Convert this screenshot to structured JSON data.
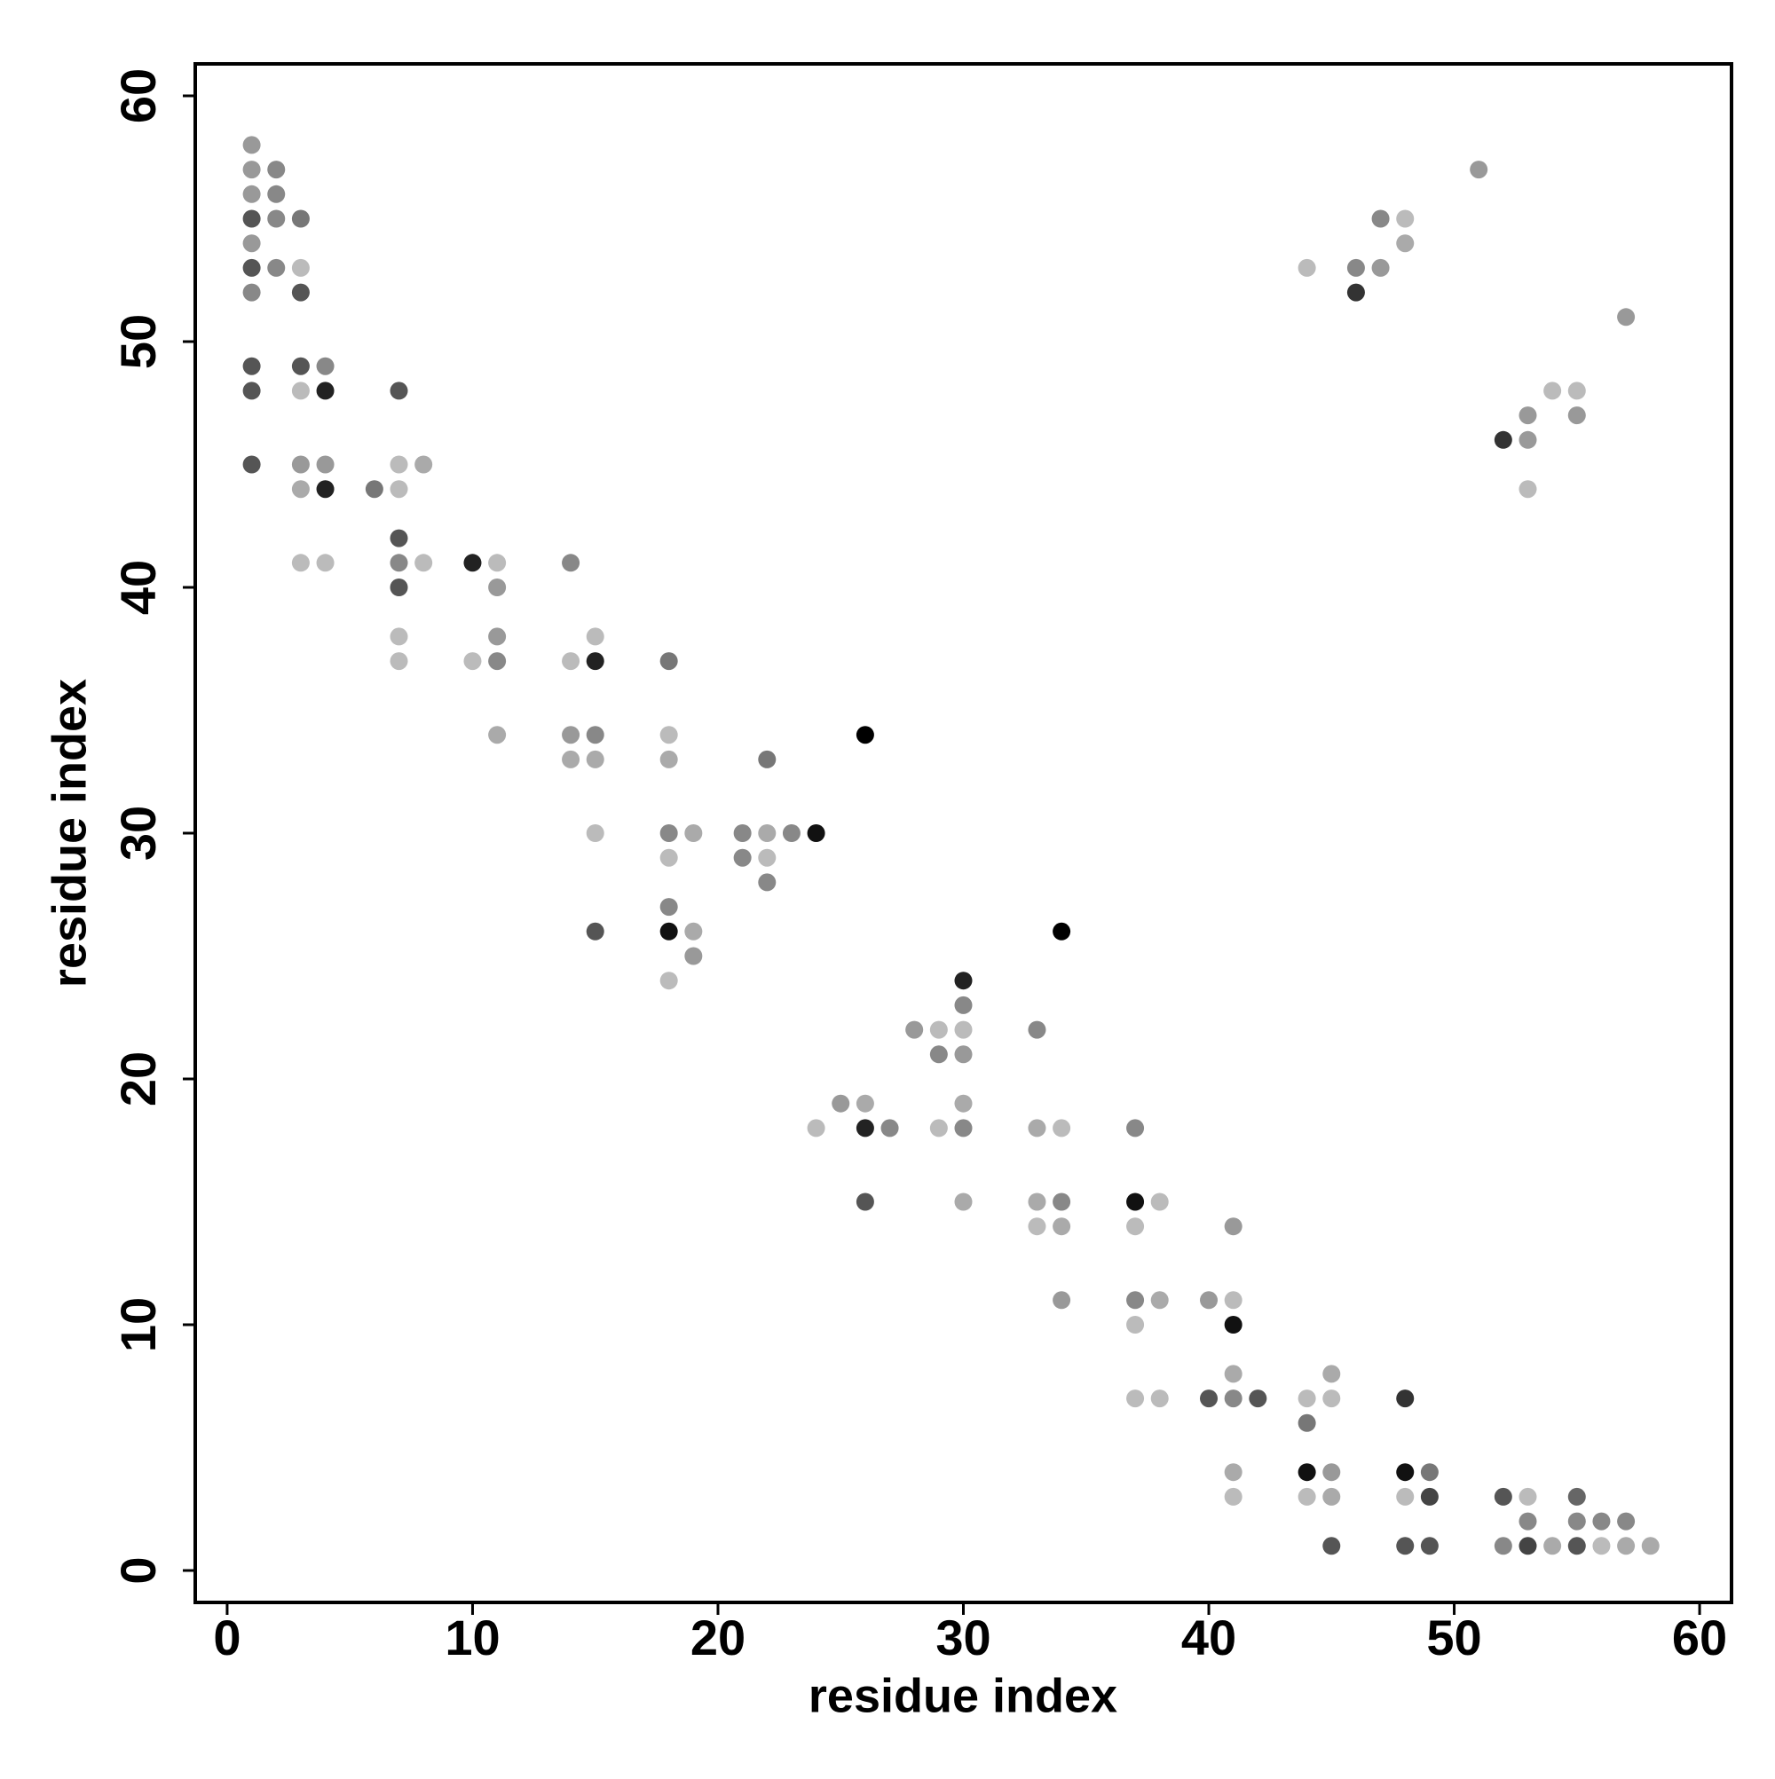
{
  "chart_data": {
    "type": "scatter",
    "x_label": "residue index",
    "y_label": "residue index",
    "xlim": [
      -1.3,
      61.3
    ],
    "ylim": [
      -1.3,
      61.3
    ],
    "xticks": [
      0,
      10,
      20,
      30,
      40,
      50,
      60
    ],
    "yticks": [
      0,
      10,
      20,
      30,
      40,
      50,
      60
    ],
    "grid": false,
    "x": [
      1,
      1,
      1,
      1,
      1,
      1,
      1,
      1,
      1,
      1,
      2,
      2,
      2,
      2,
      3,
      3,
      3,
      3,
      3,
      3,
      3,
      3,
      4,
      4,
      4,
      4,
      4,
      6,
      7,
      7,
      7,
      7,
      7,
      7,
      7,
      7,
      8,
      8,
      10,
      10,
      11,
      11,
      11,
      11,
      11,
      14,
      14,
      14,
      14,
      15,
      15,
      15,
      15,
      15,
      15,
      18,
      18,
      18,
      18,
      18,
      18,
      18,
      18,
      19,
      19,
      19,
      21,
      21,
      22,
      22,
      22,
      22,
      23,
      24,
      24,
      25,
      26,
      26,
      26,
      26,
      27,
      28,
      29,
      29,
      29,
      30,
      30,
      30,
      30,
      30,
      30,
      30,
      33,
      33,
      33,
      33,
      34,
      34,
      34,
      34,
      34,
      37,
      37,
      37,
      37,
      37,
      37,
      38,
      38,
      38,
      40,
      40,
      41,
      41,
      41,
      41,
      41,
      41,
      41,
      42,
      44,
      44,
      44,
      44,
      44,
      45,
      45,
      45,
      45,
      45,
      46,
      46,
      47,
      47,
      48,
      48,
      48,
      48,
      48,
      48,
      49,
      49,
      49,
      51,
      52,
      52,
      52,
      53,
      53,
      53,
      53,
      53,
      53,
      54,
      54,
      55,
      55,
      55,
      55,
      55,
      56,
      56,
      57,
      57,
      57,
      58
    ],
    "y": [
      58,
      57,
      56,
      55,
      54,
      53,
      52,
      49,
      48,
      45,
      57,
      56,
      55,
      53,
      55,
      53,
      52,
      49,
      48,
      45,
      44,
      41,
      49,
      48,
      45,
      44,
      41,
      44,
      48,
      45,
      44,
      42,
      41,
      40,
      38,
      37,
      45,
      41,
      41,
      37,
      41,
      40,
      38,
      37,
      34,
      41,
      37,
      34,
      33,
      38,
      37,
      34,
      33,
      30,
      26,
      37,
      34,
      33,
      30,
      29,
      27,
      26,
      24,
      30,
      26,
      25,
      30,
      29,
      33,
      30,
      29,
      28,
      30,
      30,
      18,
      19,
      34,
      19,
      18,
      15,
      18,
      22,
      22,
      21,
      18,
      24,
      23,
      22,
      21,
      19,
      18,
      15,
      22,
      18,
      15,
      14,
      26,
      18,
      15,
      14,
      11,
      18,
      15,
      14,
      11,
      10,
      7,
      15,
      11,
      7,
      11,
      7,
      14,
      11,
      10,
      8,
      7,
      4,
      3,
      7,
      53,
      7,
      6,
      4,
      3,
      8,
      7,
      4,
      3,
      1,
      53,
      52,
      55,
      53,
      55,
      54,
      7,
      4,
      3,
      1,
      4,
      3,
      1,
      57,
      46,
      3,
      1,
      47,
      46,
      44,
      3,
      2,
      1,
      48,
      1,
      48,
      47,
      3,
      2,
      1,
      2,
      1,
      51,
      2,
      1,
      1
    ],
    "colors": [
      "#999999",
      "#999999",
      "#999999",
      "#555555",
      "#999999",
      "#555555",
      "#888888",
      "#555555",
      "#555555",
      "#555555",
      "#888888",
      "#888888",
      "#888888",
      "#888888",
      "#777777",
      "#bbbbbb",
      "#555555",
      "#555555",
      "#bbbbbb",
      "#999999",
      "#aaaaaa",
      "#bbbbbb",
      "#888888",
      "#222222",
      "#999999",
      "#222222",
      "#bbbbbb",
      "#777777",
      "#555555",
      "#bbbbbb",
      "#bbbbbb",
      "#555555",
      "#888888",
      "#555555",
      "#bbbbbb",
      "#bbbbbb",
      "#aaaaaa",
      "#bbbbbb",
      "#222222",
      "#bbbbbb",
      "#bbbbbb",
      "#999999",
      "#999999",
      "#888888",
      "#aaaaaa",
      "#888888",
      "#bbbbbb",
      "#999999",
      "#aaaaaa",
      "#bbbbbb",
      "#222222",
      "#888888",
      "#aaaaaa",
      "#bbbbbb",
      "#555555",
      "#777777",
      "#bbbbbb",
      "#aaaaaa",
      "#888888",
      "#bbbbbb",
      "#888888",
      "#111111",
      "#bbbbbb",
      "#aaaaaa",
      "#aaaaaa",
      "#999999",
      "#888888",
      "#888888",
      "#777777",
      "#aaaaaa",
      "#bbbbbb",
      "#888888",
      "#888888",
      "#111111",
      "#bbbbbb",
      "#999999",
      "#000000",
      "#aaaaaa",
      "#222222",
      "#555555",
      "#888888",
      "#999999",
      "#bbbbbb",
      "#888888",
      "#bbbbbb",
      "#222222",
      "#888888",
      "#bbbbbb",
      "#999999",
      "#aaaaaa",
      "#888888",
      "#aaaaaa",
      "#888888",
      "#aaaaaa",
      "#aaaaaa",
      "#bbbbbb",
      "#000000",
      "#bbbbbb",
      "#888888",
      "#aaaaaa",
      "#999999",
      "#888888",
      "#111111",
      "#bbbbbb",
      "#888888",
      "#bbbbbb",
      "#bbbbbb",
      "#bbbbbb",
      "#aaaaaa",
      "#bbbbbb",
      "#999999",
      "#555555",
      "#999999",
      "#bbbbbb",
      "#111111",
      "#aaaaaa",
      "#888888",
      "#aaaaaa",
      "#bbbbbb",
      "#555555",
      "#bbbbbb",
      "#bbbbbb",
      "#777777",
      "#111111",
      "#bbbbbb",
      "#aaaaaa",
      "#bbbbbb",
      "#999999",
      "#aaaaaa",
      "#555555",
      "#888888",
      "#333333",
      "#888888",
      "#999999",
      "#bbbbbb",
      "#aaaaaa",
      "#333333",
      "#111111",
      "#bbbbbb",
      "#555555",
      "#777777",
      "#444444",
      "#555555",
      "#999999",
      "#333333",
      "#555555",
      "#888888",
      "#999999",
      "#999999",
      "#bbbbbb",
      "#bbbbbb",
      "#888888",
      "#444444",
      "#bbbbbb",
      "#aaaaaa",
      "#bbbbbb",
      "#999999",
      "#666666",
      "#888888",
      "#555555",
      "#888888",
      "#bbbbbb",
      "#999999",
      "#888888",
      "#aaaaaa",
      "#aaaaaa"
    ]
  }
}
